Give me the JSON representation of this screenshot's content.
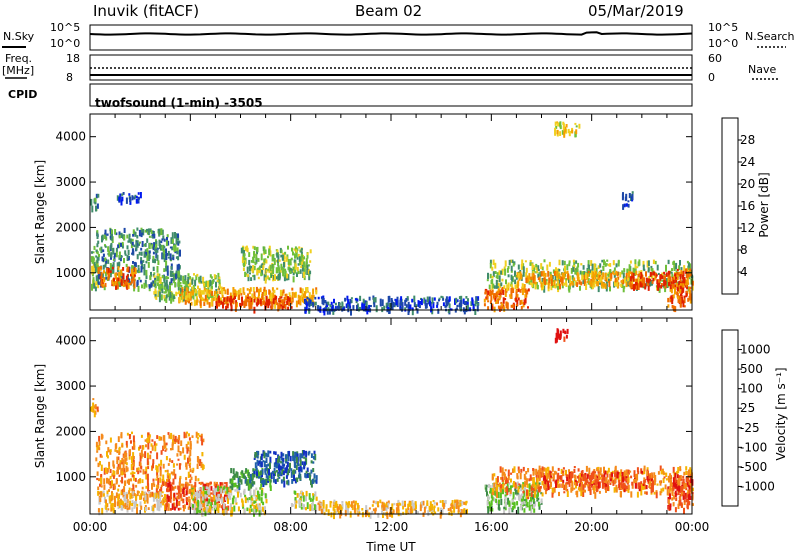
{
  "header": {
    "station": "Inuvik (fitACF)",
    "beam": "Beam 02",
    "date": "05/Mar/2019"
  },
  "params": {
    "nsky_label": "N.Sky",
    "nsky_top": "10^5",
    "nsky_bottom": "10^0",
    "nsearch_top": "10^5",
    "nsearch_bottom": "10^0",
    "nsearch_label": "N.Search",
    "freq_label": "Freq.",
    "freq_unit": "[MHz]",
    "freq_top": "18",
    "freq_bottom": "8",
    "nave_top": "60",
    "nave_bottom": "0",
    "nave_label": "Nave",
    "cpid_label": "CPID",
    "cpid_value": "twofsound (1-min) -3505"
  },
  "chart_data": [
    {
      "type": "heatmap",
      "panel": "power",
      "ylabel": "Slant Range [km]",
      "xlabel": "",
      "yticks": [
        "1000",
        "2000",
        "3000",
        "4000"
      ],
      "ylim": [
        180,
        4500
      ],
      "xlim": [
        0,
        24
      ],
      "colorbar": {
        "label": "Power [dB]",
        "ticks": [
          "4",
          "8",
          "12",
          "16",
          "20",
          "24",
          "28"
        ],
        "colors": [
          "#0018f0",
          "#1c47a8",
          "#3f8c6b",
          "#6fbf3a",
          "#f0d020",
          "#f5a000",
          "#f06c00",
          "#e02000"
        ]
      },
      "regions": [
        {
          "t": [
            0.0,
            0.4
          ],
          "r": [
            650,
            1600
          ],
          "level": 3
        },
        {
          "t": [
            0.0,
            0.3
          ],
          "r": [
            2450,
            2750
          ],
          "level": 2
        },
        {
          "t": [
            0.2,
            3.6
          ],
          "r": [
            700,
            2000
          ],
          "level": 2
        },
        {
          "t": [
            1.0,
            2.0
          ],
          "r": [
            2600,
            2800
          ],
          "level": 1
        },
        {
          "t": [
            0.3,
            1.8
          ],
          "r": [
            750,
            1150
          ],
          "level": 6
        },
        {
          "t": [
            2.5,
            5.2
          ],
          "r": [
            450,
            1000
          ],
          "level": 3
        },
        {
          "t": [
            3.5,
            9.0
          ],
          "r": [
            350,
            700
          ],
          "level": 5
        },
        {
          "t": [
            5.0,
            8.0
          ],
          "r": [
            250,
            500
          ],
          "level": 7
        },
        {
          "t": [
            6.0,
            8.8
          ],
          "r": [
            900,
            1600
          ],
          "level": 3
        },
        {
          "t": [
            8.5,
            15.5
          ],
          "r": [
            200,
            500
          ],
          "level": 1
        },
        {
          "t": [
            15.7,
            17.5
          ],
          "r": [
            250,
            700
          ],
          "level": 6
        },
        {
          "t": [
            15.8,
            24.0
          ],
          "r": [
            700,
            1300
          ],
          "level": 3
        },
        {
          "t": [
            17.0,
            22.0
          ],
          "r": [
            750,
            1050
          ],
          "level": 5
        },
        {
          "t": [
            21.5,
            23.8
          ],
          "r": [
            700,
            1050
          ],
          "level": 7
        },
        {
          "t": [
            23.0,
            24.0
          ],
          "r": [
            250,
            1100
          ],
          "level": 6
        },
        {
          "t": [
            18.5,
            19.5
          ],
          "r": [
            4100,
            4350
          ],
          "level": 4
        },
        {
          "t": [
            21.2,
            21.6
          ],
          "r": [
            2500,
            2800
          ],
          "level": 1
        }
      ]
    },
    {
      "type": "heatmap",
      "panel": "velocity",
      "ylabel": "Slant Range [km]",
      "xlabel": "Time UT",
      "xticks": [
        "00:00",
        "04:00",
        "08:00",
        "12:00",
        "16:00",
        "20:00",
        "00:00"
      ],
      "yticks": [
        "1000",
        "2000",
        "3000",
        "4000"
      ],
      "ylim": [
        180,
        4500
      ],
      "xlim": [
        0,
        24
      ],
      "colorbar": {
        "label": "Velocity [m s⁻¹]",
        "ticks": [
          "-1000",
          "-500",
          "-100",
          "-25",
          "25",
          "100",
          "500",
          "1000"
        ],
        "colors": [
          "#e01010",
          "#f0501a",
          "#f58a1a",
          "#f5b400",
          "#c8c8c8",
          "#58c020",
          "#3c8a48",
          "#2060a8",
          "#1030c0"
        ]
      },
      "regions": [
        {
          "t": [
            0.0,
            0.3
          ],
          "r": [
            2450,
            2750
          ],
          "level": 2
        },
        {
          "t": [
            0.2,
            4.5
          ],
          "r": [
            600,
            2000
          ],
          "level": 2
        },
        {
          "t": [
            0.3,
            3.0
          ],
          "r": [
            300,
            700
          ],
          "level": 3
        },
        {
          "t": [
            3.0,
            5.5
          ],
          "r": [
            300,
            900
          ],
          "level": 1
        },
        {
          "t": [
            4.0,
            7.0
          ],
          "r": [
            250,
            800
          ],
          "level": 4
        },
        {
          "t": [
            5.5,
            7.2
          ],
          "r": [
            800,
            1200
          ],
          "level": 6
        },
        {
          "t": [
            6.5,
            9.0
          ],
          "r": [
            900,
            1600
          ],
          "level": 7
        },
        {
          "t": [
            8.0,
            9.0
          ],
          "r": [
            300,
            700
          ],
          "level": 4
        },
        {
          "t": [
            9.0,
            15.0
          ],
          "r": [
            200,
            500
          ],
          "level": 3
        },
        {
          "t": [
            15.7,
            18.0
          ],
          "r": [
            300,
            900
          ],
          "level": 5
        },
        {
          "t": [
            16.0,
            24.0
          ],
          "r": [
            650,
            1250
          ],
          "level": 2
        },
        {
          "t": [
            18.0,
            22.5
          ],
          "r": [
            800,
            1150
          ],
          "level": 1
        },
        {
          "t": [
            23.0,
            24.0
          ],
          "r": [
            300,
            1100
          ],
          "level": 1
        },
        {
          "t": [
            18.5,
            19.0
          ],
          "r": [
            4050,
            4300
          ],
          "level": 0
        }
      ]
    }
  ]
}
